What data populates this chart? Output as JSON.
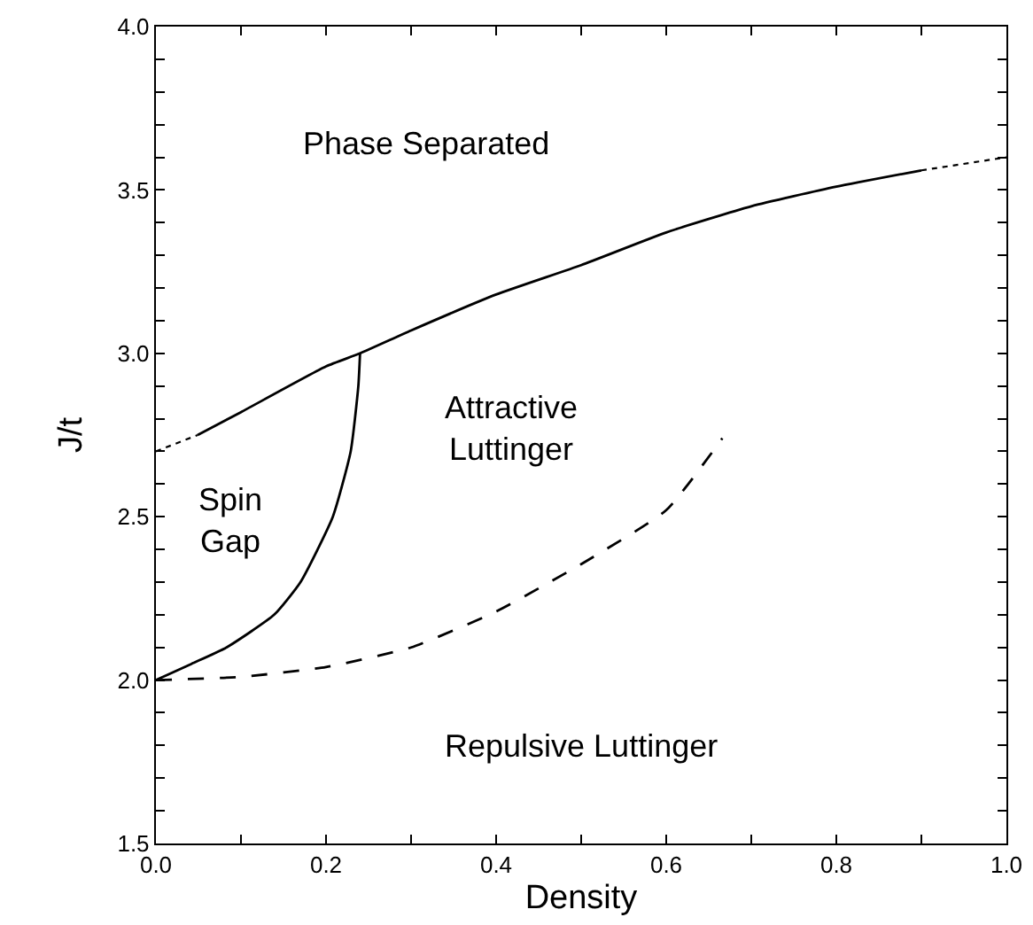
{
  "chart_data": {
    "type": "line",
    "xlabel": "Density",
    "ylabel": "J/t",
    "series": [
      {
        "color": "#000000",
        "line_style": "dotted",
        "x": [
          0,
          0.049
        ],
        "values": [
          2.7,
          2.75
        ]
      },
      {
        "color": "#000000",
        "line_style": "solid",
        "x": [
          0.049,
          0.1,
          0.2,
          0.24,
          0.3,
          0.4,
          0.5,
          0.6,
          0.7,
          0.8,
          0.9
        ],
        "values": [
          2.75,
          2.82,
          2.96,
          3.0,
          3.07,
          3.18,
          3.27,
          3.37,
          3.45,
          3.51,
          3.56
        ]
      },
      {
        "color": "#000000",
        "line_style": "dotted",
        "x": [
          0.9,
          1.0
        ],
        "values": [
          3.56,
          3.6
        ]
      },
      {
        "color": "#000000",
        "line_style": "solid",
        "x": [
          0,
          0.042,
          0.083,
          0.139,
          0.17,
          0.208,
          0.229,
          0.238,
          0.24
        ],
        "values": [
          2.0,
          2.05,
          2.1,
          2.2,
          2.3,
          2.5,
          2.7,
          2.9,
          3.0
        ]
      },
      {
        "color": "#000000",
        "line_style": "dashed",
        "x": [
          0,
          0.1,
          0.2,
          0.3,
          0.4,
          0.5,
          0.6,
          0.666
        ],
        "values": [
          2.0,
          2.01,
          2.04,
          2.1,
          2.21,
          2.355,
          2.52,
          2.74
        ]
      }
    ],
    "annotations": [
      "Phase Separated",
      "Spin\nGap",
      "Attractive\nLuttinger",
      "Repulsive Luttinger"
    ],
    "xlim": [
      0,
      1
    ],
    "ylim": [
      1.5,
      4.0
    ],
    "xticks": [
      {
        "value": 0,
        "label": "0.0"
      },
      {
        "value": 0.1,
        "label": null
      },
      {
        "value": 0.2,
        "label": "0.2"
      },
      {
        "value": 0.3,
        "label": null
      },
      {
        "value": 0.4,
        "label": "0.4"
      },
      {
        "value": 0.5,
        "label": null
      },
      {
        "value": 0.6,
        "label": "0.6"
      },
      {
        "value": 0.7,
        "label": null
      },
      {
        "value": 0.8,
        "label": "0.8"
      },
      {
        "value": 0.9,
        "label": null
      },
      {
        "value": 1,
        "label": "1.0"
      }
    ],
    "yticks": [
      {
        "value": 1.5,
        "label": "1.5"
      },
      {
        "value": 1.6,
        "label": null
      },
      {
        "value": 1.7,
        "label": null
      },
      {
        "value": 1.8,
        "label": null
      },
      {
        "value": 1.9,
        "label": null
      },
      {
        "value": 2.0,
        "label": "2.0"
      },
      {
        "value": 2.1,
        "label": null
      },
      {
        "value": 2.2,
        "label": null
      },
      {
        "value": 2.3,
        "label": null
      },
      {
        "value": 2.4,
        "label": null
      },
      {
        "value": 2.5,
        "label": "2.5"
      },
      {
        "value": 2.6,
        "label": null
      },
      {
        "value": 2.7,
        "label": null
      },
      {
        "value": 2.8,
        "label": null
      },
      {
        "value": 2.9,
        "label": null
      },
      {
        "value": 3.0,
        "label": "3.0"
      },
      {
        "value": 3.1,
        "label": null
      },
      {
        "value": 3.2,
        "label": null
      },
      {
        "value": 3.3,
        "label": null
      },
      {
        "value": 3.4,
        "label": null
      },
      {
        "value": 3.5,
        "label": "3.5"
      },
      {
        "value": 3.6,
        "label": null
      },
      {
        "value": 3.7,
        "label": null
      },
      {
        "value": 3.8,
        "label": null
      },
      {
        "value": 3.9,
        "label": null
      },
      {
        "value": 4.0,
        "label": "4.0"
      }
    ],
    "grid": false,
    "marker": "none"
  }
}
